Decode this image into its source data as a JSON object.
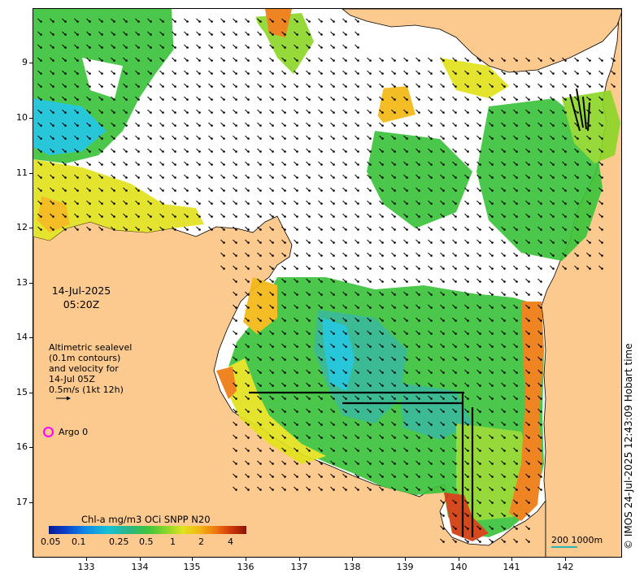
{
  "map": {
    "annotation_datetime_date": "14-Jul-2025",
    "annotation_datetime_time": "05:20Z",
    "altimetry_label_lines": [
      "Altimetric sealevel",
      "(0.1m contours)",
      "and velocity for",
      "14-Jul 05Z",
      "0.5m/s (1kt 12h)"
    ],
    "argo_label": "Argo 0",
    "argo_color": "#ff00ff",
    "colorbar_title": "Chl-a mg/m3 OCi SNPP N20",
    "colorbar_ticks": [
      "0.05",
      "0.1",
      "0.25",
      "0.5",
      "1",
      "2",
      "4"
    ],
    "credit": "© IMOS 24-Jul-2025 12:43:09 Hobart time",
    "scale_label": "200  1000m",
    "lat_labels": [
      "9",
      "10",
      "11",
      "12",
      "13",
      "14",
      "15",
      "16",
      "17"
    ],
    "lon_labels": [
      "133",
      "134",
      "135",
      "136",
      "137",
      "138",
      "139",
      "140",
      "141",
      "142"
    ],
    "land_color": "#fcc98f",
    "cloud_color": "#ffffff"
  }
}
